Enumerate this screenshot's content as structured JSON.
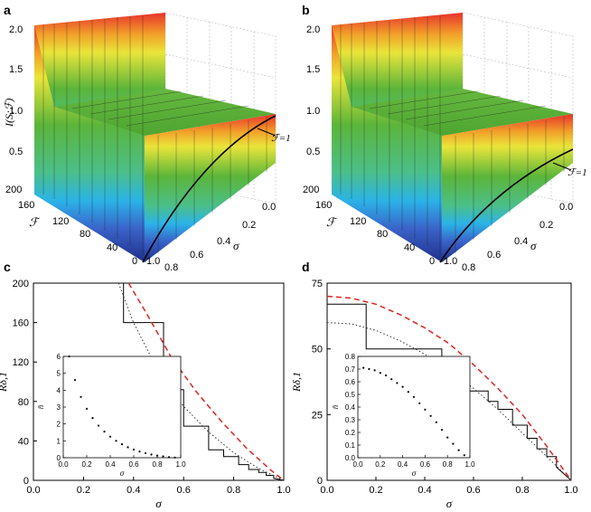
{
  "panels": {
    "a": {
      "label": "a"
    },
    "b": {
      "label": "b"
    },
    "c": {
      "label": "c"
    },
    "d": {
      "label": "d"
    }
  },
  "surface_axes": {
    "zlabel": "I(S;ℱ)",
    "zticks": [
      "2.0",
      "1.5",
      "1.0",
      "0.5"
    ],
    "nticks": [
      "200",
      "160",
      "120",
      "80",
      "40",
      "0"
    ],
    "nlabel": "ℱ",
    "sticks": [
      "0.0",
      "0.2",
      "0.4",
      "0.6",
      "0.8",
      "1.0"
    ],
    "slabel": "σ",
    "annotation": "ℱ=1"
  },
  "colors": {
    "surface_top": "#e8322c",
    "surface_mid": "#5cb53a",
    "surface_low": "#2bb3e8",
    "surface_base": "#1f2f8a",
    "dashed": "#e0231b"
  },
  "chart_data": [
    {
      "panel": "c",
      "type": "line",
      "xlabel": "σ",
      "ylabel": "Rδ,1",
      "xlim": [
        0,
        1.0
      ],
      "ylim": [
        0,
        200
      ],
      "xticks": [
        "0.0",
        "0.2",
        "0.4",
        "0.6",
        "0.8",
        "1.0"
      ],
      "yticks": [
        "0",
        "40",
        "80",
        "120",
        "160",
        "200"
      ],
      "series": [
        {
          "style": "solid",
          "x": [
            0.355,
            0.36,
            0.36,
            0.52,
            0.52,
            0.6,
            0.6,
            0.7,
            0.7,
            0.76,
            0.76,
            0.82,
            0.82,
            0.86,
            0.86,
            0.9,
            0.9,
            0.93,
            0.93,
            0.96,
            0.96,
            1.0
          ],
          "y": [
            200,
            200,
            160,
            160,
            92,
            92,
            55,
            55,
            31,
            31,
            24,
            24,
            16,
            16,
            11,
            11,
            8,
            8,
            5,
            5,
            2,
            0
          ]
        },
        {
          "style": "dotted",
          "x": [
            0.34,
            0.4,
            0.5,
            0.6,
            0.7,
            0.8,
            0.9,
            1.0
          ],
          "y": [
            200,
            160,
            110,
            75,
            49,
            28,
            12,
            0
          ]
        },
        {
          "style": "dashed",
          "x": [
            0.38,
            0.45,
            0.55,
            0.65,
            0.75,
            0.85,
            0.95,
            1.0
          ],
          "y": [
            200,
            170,
            125,
            90,
            60,
            33,
            10,
            0
          ]
        }
      ],
      "inset": {
        "xlabel": "σ",
        "ylabel": "n̄",
        "xlim": [
          0,
          1.0
        ],
        "ylim": [
          0,
          6
        ],
        "xticks": [
          "0.0",
          "0.2",
          "0.4",
          "0.6",
          "0.8",
          "1.0"
        ],
        "yticks": [
          "0",
          "1",
          "2",
          "3",
          "4",
          "5",
          "6"
        ],
        "x": [
          0.05,
          0.1,
          0.15,
          0.2,
          0.25,
          0.3,
          0.35,
          0.4,
          0.45,
          0.5,
          0.55,
          0.6,
          0.65,
          0.7,
          0.75,
          0.8,
          0.85,
          0.9,
          0.95
        ],
        "y": [
          6.0,
          4.6,
          3.6,
          2.9,
          2.35,
          1.9,
          1.55,
          1.25,
          1.0,
          0.8,
          0.62,
          0.48,
          0.37,
          0.27,
          0.19,
          0.13,
          0.08,
          0.04,
          0.01
        ]
      }
    },
    {
      "panel": "d",
      "type": "line",
      "xlabel": "σ",
      "ylabel": "Rδ,1",
      "xlim": [
        0,
        1.0
      ],
      "ylim": [
        0,
        75
      ],
      "xticks": [
        "0.0",
        "0.2",
        "0.4",
        "0.6",
        "0.8",
        "1.0"
      ],
      "yticks": [
        "0",
        "25",
        "50",
        "75"
      ],
      "series": [
        {
          "style": "solid",
          "x": [
            0,
            0.16,
            0.16,
            0.47,
            0.47,
            0.58,
            0.58,
            0.66,
            0.66,
            0.7,
            0.7,
            0.76,
            0.76,
            0.82,
            0.82,
            0.86,
            0.86,
            0.9,
            0.9,
            0.94,
            0.94,
            1.0
          ],
          "y": [
            67,
            67,
            50,
            50,
            40,
            40,
            34,
            34,
            30,
            30,
            27,
            27,
            21,
            21,
            16,
            16,
            12,
            12,
            9,
            9,
            5,
            0
          ]
        },
        {
          "style": "dotted",
          "x": [
            0,
            0.1,
            0.2,
            0.3,
            0.4,
            0.5,
            0.6,
            0.7,
            0.8,
            0.9,
            1.0
          ],
          "y": [
            60,
            59.5,
            57,
            53,
            48,
            42,
            35,
            27,
            18,
            9,
            0
          ]
        },
        {
          "style": "dashed",
          "x": [
            0,
            0.1,
            0.2,
            0.3,
            0.4,
            0.5,
            0.6,
            0.7,
            0.8,
            0.9,
            1.0
          ],
          "y": [
            70,
            69.3,
            67,
            63,
            58,
            52,
            44,
            35,
            25,
            13,
            0
          ]
        }
      ],
      "inset": {
        "xlabel": "σ",
        "ylabel": "n̄",
        "xlim": [
          0,
          1.0
        ],
        "ylim": [
          0,
          0.8
        ],
        "xticks": [
          "0.0",
          "0.2",
          "0.4",
          "0.6",
          "0.8",
          "1.0"
        ],
        "yticks": [
          "0.0",
          "0.1",
          "0.2",
          "0.3",
          "0.4",
          "0.5",
          "0.6",
          "0.7",
          "0.8"
        ],
        "x": [
          0.05,
          0.1,
          0.15,
          0.2,
          0.25,
          0.3,
          0.35,
          0.4,
          0.45,
          0.5,
          0.55,
          0.6,
          0.65,
          0.7,
          0.75,
          0.8,
          0.85,
          0.9,
          0.95
        ],
        "y": [
          0.71,
          0.7,
          0.69,
          0.67,
          0.65,
          0.62,
          0.59,
          0.56,
          0.52,
          0.48,
          0.43,
          0.38,
          0.33,
          0.28,
          0.22,
          0.16,
          0.11,
          0.06,
          0.02
        ]
      }
    }
  ]
}
